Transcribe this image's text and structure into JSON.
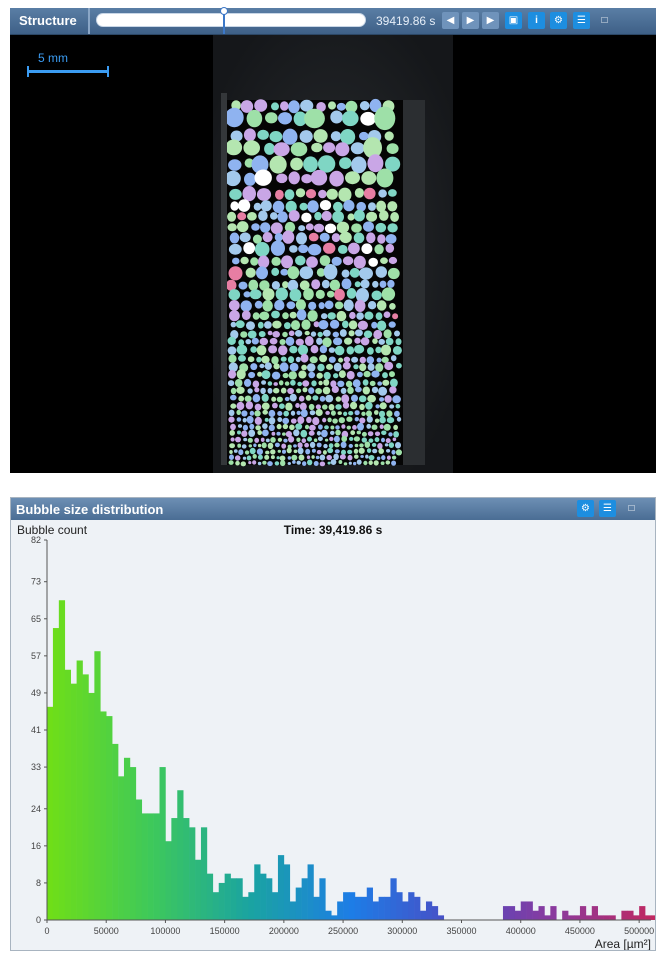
{
  "structure": {
    "title": "Structure",
    "time_readout": "39419.86 s",
    "timeline_position": 0.47,
    "scale_bar_label": "5 mm",
    "toolbar_buttons": [
      {
        "name": "step-back-button",
        "icon": "step-back-icon",
        "glyph": "◀"
      },
      {
        "name": "play-button",
        "icon": "play-icon",
        "glyph": "▶"
      },
      {
        "name": "step-forward-button",
        "icon": "step-forward-icon",
        "glyph": "▶"
      },
      {
        "name": "save-button",
        "icon": "save-icon",
        "glyph": "▣"
      },
      {
        "name": "info-button",
        "icon": "info-icon",
        "glyph": "i"
      },
      {
        "name": "settings-button",
        "icon": "gear-icon",
        "glyph": "⚙"
      },
      {
        "name": "report-button",
        "icon": "report-icon",
        "glyph": "☰"
      },
      {
        "name": "maximize-button",
        "icon": "maximize-icon",
        "glyph": "□"
      }
    ]
  },
  "histogram": {
    "title": "Bubble size distribution",
    "header_buttons": [
      {
        "name": "settings-button",
        "icon": "gear-icon",
        "glyph": "⚙"
      },
      {
        "name": "report-button",
        "icon": "report-icon",
        "glyph": "☰"
      },
      {
        "name": "maximize-button",
        "icon": "maximize-icon",
        "glyph": "□"
      }
    ]
  },
  "chart_data": {
    "type": "bar",
    "title": "Time: 39,419.86 s",
    "ylabel": "Bubble count",
    "xlabel": "Area [µm²]",
    "xlim": [
      0,
      510000
    ],
    "ylim": [
      0,
      82
    ],
    "bin_width": 5000,
    "x_ticks": [
      0,
      50000,
      100000,
      150000,
      200000,
      250000,
      300000,
      350000,
      400000,
      450000,
      500000
    ],
    "y_ticks": [
      0,
      8,
      16,
      24,
      33,
      41,
      49,
      57,
      65,
      73,
      82
    ],
    "grid": false,
    "colormap": [
      "#6fde18",
      "#3ec95a",
      "#1aa3a2",
      "#1d7de6",
      "#4b4cc4",
      "#8a3a9e",
      "#c02860"
    ],
    "values": [
      46,
      63,
      69,
      54,
      51,
      56,
      53,
      49,
      58,
      45,
      44,
      38,
      31,
      35,
      33,
      26,
      23,
      23,
      23,
      33,
      17,
      22,
      28,
      22,
      20,
      13,
      20,
      10,
      6,
      8,
      10,
      9,
      9,
      5,
      6,
      12,
      10,
      9,
      6,
      14,
      12,
      4,
      7,
      9,
      12,
      5,
      9,
      2,
      1,
      4,
      6,
      6,
      5,
      5,
      7,
      4,
      5,
      5,
      9,
      6,
      4,
      6,
      5,
      2,
      4,
      3,
      1,
      0,
      0,
      0,
      0,
      0,
      0,
      0,
      0,
      0,
      0,
      3,
      3,
      2,
      4,
      4,
      2,
      3,
      1,
      3,
      0,
      2,
      1,
      1,
      3,
      1,
      3,
      1,
      1,
      1,
      0,
      2,
      2,
      1,
      3,
      1,
      1,
      1,
      1,
      0,
      1,
      0,
      1,
      0,
      0,
      1,
      0,
      1,
      0,
      1,
      0,
      0,
      0,
      0,
      0,
      0,
      1,
      0,
      0,
      1,
      0,
      1
    ]
  }
}
